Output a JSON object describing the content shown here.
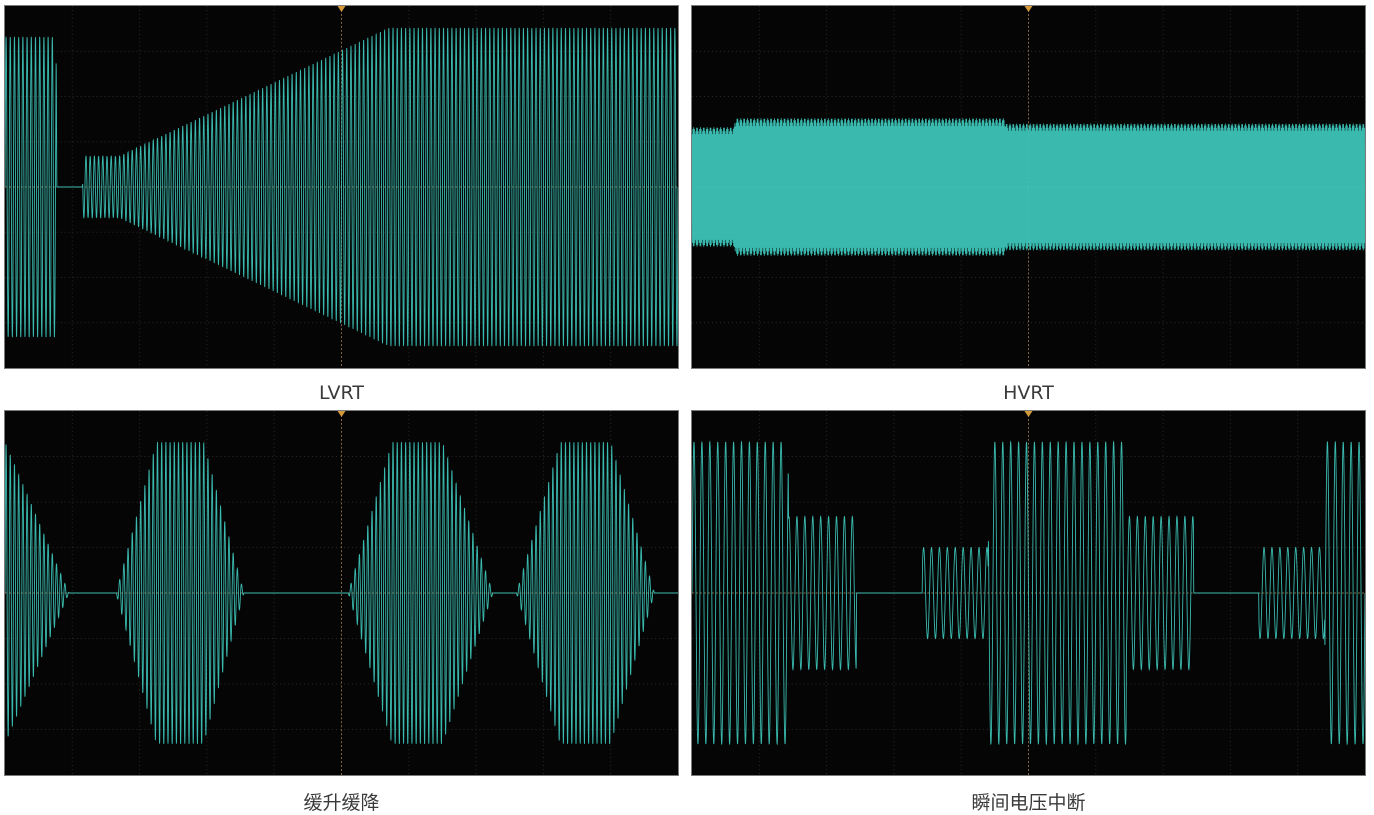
{
  "colors": {
    "trace": "#3fc9bd",
    "grid": "#2a2a2a",
    "center": "#a07a50",
    "background": "#050505"
  },
  "chart_data": [
    {
      "type": "line",
      "caption": "LVRT",
      "x_range": [
        0,
        100
      ],
      "y_range": [
        -1,
        1
      ],
      "envelope": [
        [
          0,
          0.83
        ],
        [
          7.6,
          0.83
        ],
        [
          7.7,
          0
        ],
        [
          11.5,
          0
        ],
        [
          11.6,
          0.17
        ],
        [
          17,
          0.17
        ],
        [
          57,
          0.88
        ],
        [
          100,
          0.88
        ]
      ],
      "cycles_per_unit": 1.6
    },
    {
      "type": "line",
      "caption": "HVRT",
      "x_range": [
        0,
        100
      ],
      "y_range": [
        -1,
        1
      ],
      "envelope": [
        [
          0,
          0.33
        ],
        [
          6.3,
          0.33
        ],
        [
          6.4,
          0.38
        ],
        [
          46.5,
          0.38
        ],
        [
          46.6,
          0.35
        ],
        [
          100,
          0.35
        ]
      ],
      "cycles_per_unit": 9
    },
    {
      "type": "line",
      "caption": "缓升缓降",
      "x_range": [
        0,
        100
      ],
      "y_range": [
        -1,
        1
      ],
      "envelope": [
        [
          0,
          0.83
        ],
        [
          9.5,
          0
        ],
        [
          16.5,
          0
        ],
        [
          22.5,
          0.83
        ],
        [
          29.5,
          0.83
        ],
        [
          35.5,
          0
        ],
        [
          51,
          0
        ],
        [
          57.5,
          0.83
        ],
        [
          65,
          0.83
        ],
        [
          72.5,
          0
        ],
        [
          76,
          0
        ],
        [
          82.5,
          0.83
        ],
        [
          90,
          0.83
        ],
        [
          96.5,
          0
        ],
        [
          100,
          0
        ]
      ],
      "cycles_per_unit": 1.6
    },
    {
      "type": "line",
      "caption": "瞬间电压中断",
      "x_range": [
        0,
        100
      ],
      "y_range": [
        -1,
        1
      ],
      "envelope": [
        [
          0,
          0.83
        ],
        [
          14.3,
          0.83
        ],
        [
          14.35,
          0.42
        ],
        [
          24.4,
          0.42
        ],
        [
          24.45,
          0
        ],
        [
          34.2,
          0
        ],
        [
          34.25,
          0.25
        ],
        [
          44,
          0.25
        ],
        [
          44.05,
          0.83
        ],
        [
          64.5,
          0.83
        ],
        [
          64.55,
          0.42
        ],
        [
          74.5,
          0.42
        ],
        [
          74.55,
          0
        ],
        [
          84.2,
          0
        ],
        [
          84.25,
          0.25
        ],
        [
          94,
          0.25
        ],
        [
          94.05,
          0.83
        ],
        [
          100,
          0.83
        ]
      ],
      "cycles_per_unit": 0.85
    }
  ]
}
